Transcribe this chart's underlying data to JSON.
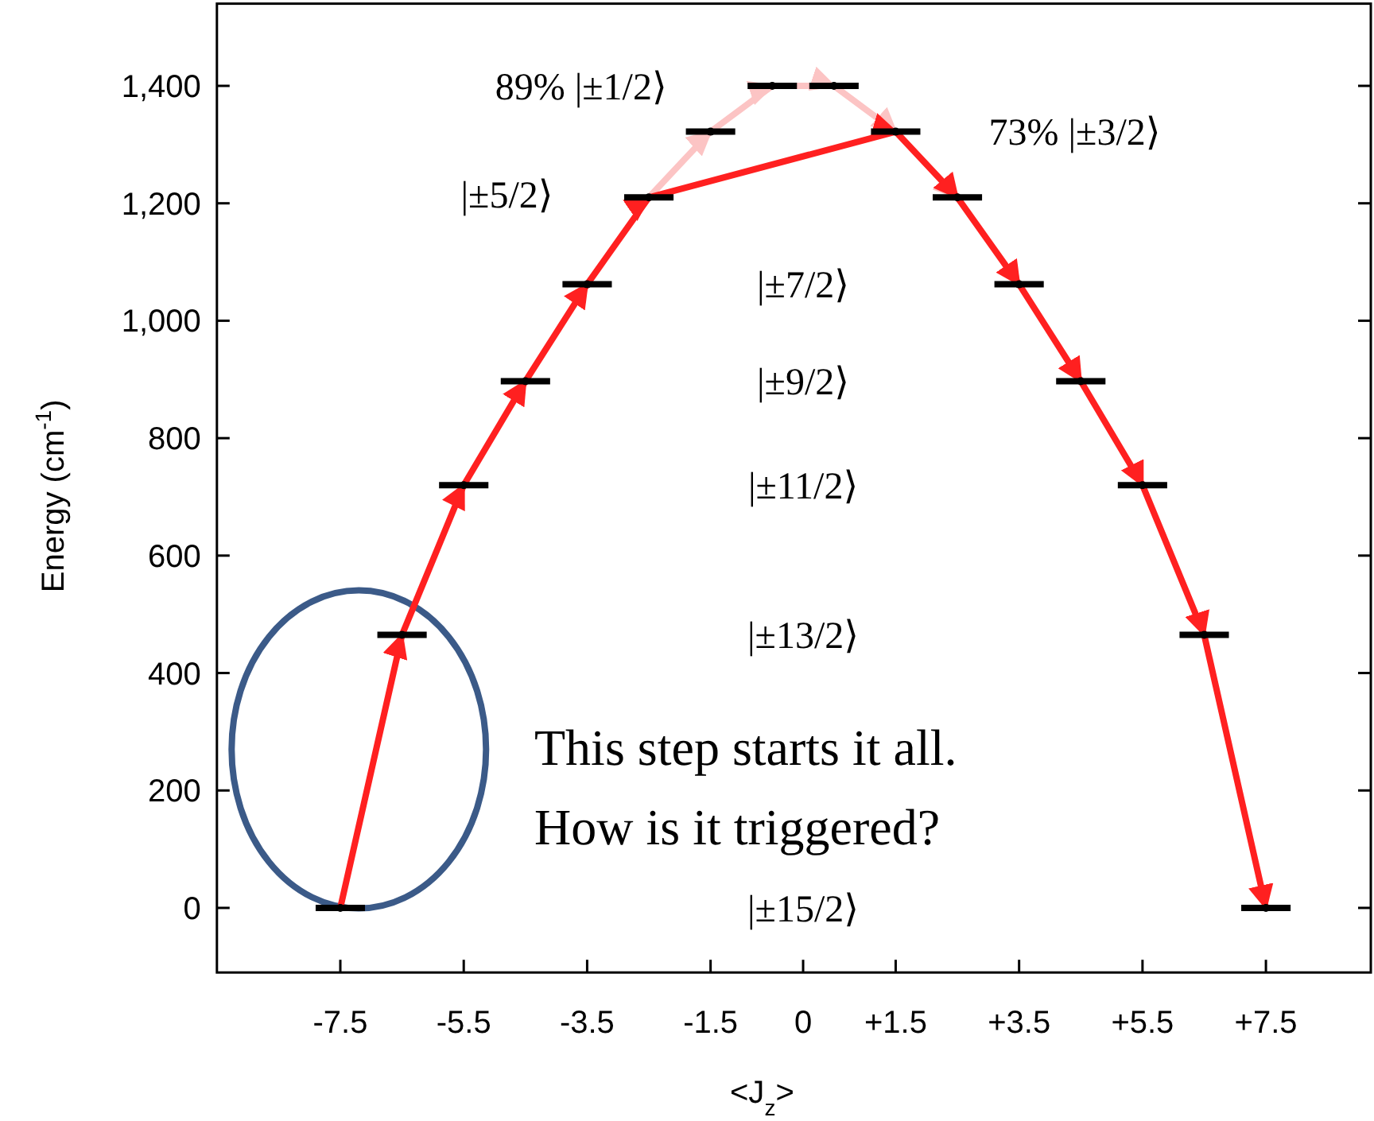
{
  "chart_data": {
    "type": "scatter",
    "xlabel": "<J$_{z}$>",
    "ylabel": "Energy (cm$^{-1}$)",
    "xlim": [
      -9.5,
      9.2
    ],
    "ylim": [
      -110,
      1540
    ],
    "xticks": [
      -7.5,
      -5.5,
      -3.5,
      -1.5,
      0,
      {
        "value": 1.5,
        "label": "+1.5"
      },
      {
        "value": 3.5,
        "label": "+3.5"
      },
      {
        "value": 5.5,
        "label": "+5.5"
      },
      {
        "value": 7.5,
        "label": "+7.5"
      }
    ],
    "yticks": [
      0,
      200,
      400,
      600,
      800,
      {
        "value": 1000,
        "label": "1,000"
      },
      {
        "value": 1200,
        "label": "1,200"
      },
      {
        "value": 1400,
        "label": "1,400"
      }
    ],
    "grid": false,
    "series": [
      {
        "type": "line",
        "color": "#fcc4c4",
        "x": [
          -2.5,
          -1.5,
          -0.5,
          0.5,
          1.5,
          2.5
        ],
        "values": [
          1210,
          1322,
          1400,
          1400,
          1322,
          1210
        ]
      },
      {
        "type": "line",
        "color": "#ff2020",
        "x": [
          -7.5,
          -6.5,
          -5.5,
          -4.5,
          -3.5,
          -2.5,
          1.5,
          2.5,
          3.5,
          4.5,
          5.5,
          6.5,
          7.5
        ],
        "values": [
          0,
          465,
          720,
          897,
          1062,
          1210,
          1322,
          1210,
          1062,
          897,
          720,
          465,
          0
        ]
      },
      {
        "color": "#000000",
        "marker": "circle",
        "xerrors": [
          0.4,
          0.4,
          0.4,
          0.4,
          0.4,
          0.4,
          0.4,
          0.4,
          0.4,
          0.4,
          0.4,
          0.4,
          0.4,
          0.4,
          0.4,
          0.4
        ],
        "x": [
          -7.5,
          -6.5,
          -5.5,
          -4.5,
          -3.5,
          -2.5,
          -1.5,
          -0.5,
          0.5,
          1.5,
          2.5,
          3.5,
          4.5,
          5.5,
          6.5,
          7.5
        ],
        "values": [
          0,
          465,
          720,
          897,
          1062,
          1210,
          1322,
          1400,
          1400,
          1322,
          1210,
          1062,
          897,
          720,
          465,
          0
        ]
      }
    ],
    "annotations": [
      "|±15/2⟩",
      "|±13/2⟩",
      "|±11/2⟩",
      "|±9/2⟩",
      "|±7/2⟩",
      "|±5/2⟩",
      "89% |±1/2⟩",
      "73% |±3/2⟩",
      "This step starts it all.",
      "How is it triggered?"
    ]
  }
}
